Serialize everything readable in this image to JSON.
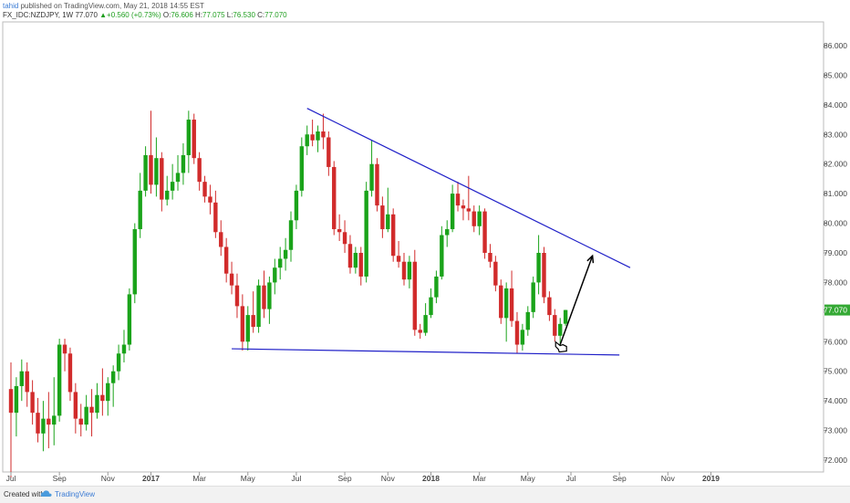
{
  "header": {
    "user": "tahid",
    "published": " published on TradingView.com, May 21, 2018 14:55 EST",
    "symbol": "FX_IDC:NZDJPY, 1W",
    "last": "77.070",
    "change": "▲+0.560 (+0.73%)",
    "o_label": "O:",
    "o": "76.606",
    "h_label": "H:",
    "h": "77.075",
    "l_label": "L:",
    "l": "76.530",
    "c_label": "C:",
    "c": "77.070"
  },
  "footer": {
    "created_with": "Created with",
    "brand": "TradingView",
    "logo": "tradingview-cloud-logo"
  },
  "colors": {
    "up": "#1aa31a",
    "down": "#d12b2b",
    "trendline": "#2020c8",
    "arrow": "#000000",
    "price_label_bg": "#34a934",
    "axis_text": "#444444",
    "grid": "#e8e8e8"
  },
  "chart_data": {
    "type": "candlestick",
    "symbol": "FX_IDC:NZDJPY",
    "interval": "1W",
    "ylim": [
      71.6,
      86.8
    ],
    "yticks": [
      "72.000",
      "73.000",
      "74.000",
      "75.000",
      "76.000",
      "77.000",
      "78.000",
      "79.000",
      "80.000",
      "81.000",
      "82.000",
      "83.000",
      "84.000",
      "85.000",
      "86.000"
    ],
    "xticks": [
      {
        "label": "Jul",
        "week": 0
      },
      {
        "label": "Sep",
        "week": 9
      },
      {
        "label": "Nov",
        "week": 18
      },
      {
        "label": "2017",
        "week": 26
      },
      {
        "label": "Mar",
        "week": 35
      },
      {
        "label": "May",
        "week": 44
      },
      {
        "label": "Jul",
        "week": 53
      },
      {
        "label": "Sep",
        "week": 62
      },
      {
        "label": "Nov",
        "week": 70
      },
      {
        "label": "2018",
        "week": 78
      },
      {
        "label": "Mar",
        "week": 87
      },
      {
        "label": "May",
        "week": 96
      },
      {
        "label": "Jul",
        "week": 104
      },
      {
        "label": "Sep",
        "week": 113
      },
      {
        "label": "Nov",
        "week": 122
      },
      {
        "label": "2019",
        "week": 130
      }
    ],
    "last_price_label": "77.070",
    "candles": [
      {
        "o": 74.4,
        "h": 75.3,
        "l": 71.4,
        "c": 73.6
      },
      {
        "o": 73.6,
        "h": 74.8,
        "l": 72.8,
        "c": 74.5
      },
      {
        "o": 74.5,
        "h": 75.4,
        "l": 74.0,
        "c": 75.0
      },
      {
        "o": 75.0,
        "h": 75.3,
        "l": 73.8,
        "c": 74.3
      },
      {
        "o": 74.3,
        "h": 74.7,
        "l": 73.2,
        "c": 73.6
      },
      {
        "o": 73.6,
        "h": 74.1,
        "l": 72.6,
        "c": 72.9
      },
      {
        "o": 72.9,
        "h": 74.0,
        "l": 72.3,
        "c": 73.4
      },
      {
        "o": 73.4,
        "h": 74.3,
        "l": 72.4,
        "c": 73.2
      },
      {
        "o": 73.2,
        "h": 74.8,
        "l": 72.5,
        "c": 73.5
      },
      {
        "o": 73.5,
        "h": 76.1,
        "l": 73.3,
        "c": 75.9
      },
      {
        "o": 75.9,
        "h": 76.1,
        "l": 75.0,
        "c": 75.6
      },
      {
        "o": 75.6,
        "h": 75.8,
        "l": 74.0,
        "c": 74.3
      },
      {
        "o": 74.3,
        "h": 74.6,
        "l": 72.9,
        "c": 73.4
      },
      {
        "o": 73.4,
        "h": 73.9,
        "l": 72.8,
        "c": 73.2
      },
      {
        "o": 73.2,
        "h": 74.2,
        "l": 73.0,
        "c": 73.8
      },
      {
        "o": 73.8,
        "h": 74.4,
        "l": 72.8,
        "c": 73.6
      },
      {
        "o": 73.6,
        "h": 74.6,
        "l": 73.4,
        "c": 74.2
      },
      {
        "o": 74.2,
        "h": 75.1,
        "l": 73.5,
        "c": 74.0
      },
      {
        "o": 74.0,
        "h": 74.8,
        "l": 73.5,
        "c": 74.6
      },
      {
        "o": 74.6,
        "h": 75.2,
        "l": 73.8,
        "c": 75.0
      },
      {
        "o": 75.0,
        "h": 75.9,
        "l": 74.7,
        "c": 75.6
      },
      {
        "o": 75.6,
        "h": 76.4,
        "l": 75.3,
        "c": 75.9
      },
      {
        "o": 75.9,
        "h": 77.8,
        "l": 75.7,
        "c": 77.6
      },
      {
        "o": 77.6,
        "h": 80.0,
        "l": 77.3,
        "c": 79.8
      },
      {
        "o": 79.8,
        "h": 81.7,
        "l": 79.5,
        "c": 81.1
      },
      {
        "o": 81.1,
        "h": 82.6,
        "l": 80.9,
        "c": 82.3
      },
      {
        "o": 82.3,
        "h": 83.8,
        "l": 81.0,
        "c": 81.3
      },
      {
        "o": 81.3,
        "h": 82.9,
        "l": 80.9,
        "c": 82.2
      },
      {
        "o": 82.2,
        "h": 82.4,
        "l": 80.4,
        "c": 80.8
      },
      {
        "o": 80.8,
        "h": 81.6,
        "l": 80.6,
        "c": 81.1
      },
      {
        "o": 81.1,
        "h": 82.0,
        "l": 80.8,
        "c": 81.4
      },
      {
        "o": 81.4,
        "h": 82.3,
        "l": 81.1,
        "c": 81.7
      },
      {
        "o": 81.7,
        "h": 82.7,
        "l": 81.3,
        "c": 82.3
      },
      {
        "o": 82.3,
        "h": 83.8,
        "l": 81.7,
        "c": 83.5
      },
      {
        "o": 83.5,
        "h": 83.7,
        "l": 82.0,
        "c": 82.2
      },
      {
        "o": 82.2,
        "h": 82.4,
        "l": 81.1,
        "c": 81.4
      },
      {
        "o": 81.4,
        "h": 81.6,
        "l": 80.7,
        "c": 80.9
      },
      {
        "o": 80.9,
        "h": 81.3,
        "l": 80.3,
        "c": 80.7
      },
      {
        "o": 80.7,
        "h": 81.1,
        "l": 79.5,
        "c": 79.7
      },
      {
        "o": 79.7,
        "h": 80.1,
        "l": 78.9,
        "c": 79.2
      },
      {
        "o": 79.2,
        "h": 79.5,
        "l": 78.0,
        "c": 78.3
      },
      {
        "o": 78.3,
        "h": 78.7,
        "l": 77.6,
        "c": 77.9
      },
      {
        "o": 77.9,
        "h": 78.3,
        "l": 76.8,
        "c": 77.2
      },
      {
        "o": 77.2,
        "h": 77.6,
        "l": 75.7,
        "c": 76.0
      },
      {
        "o": 76.0,
        "h": 77.2,
        "l": 75.7,
        "c": 76.9
      },
      {
        "o": 76.9,
        "h": 77.7,
        "l": 76.3,
        "c": 76.5
      },
      {
        "o": 76.5,
        "h": 78.1,
        "l": 76.3,
        "c": 77.9
      },
      {
        "o": 77.9,
        "h": 78.4,
        "l": 76.8,
        "c": 77.1
      },
      {
        "o": 77.1,
        "h": 78.2,
        "l": 76.6,
        "c": 78.0
      },
      {
        "o": 78.0,
        "h": 78.8,
        "l": 77.6,
        "c": 78.5
      },
      {
        "o": 78.5,
        "h": 79.2,
        "l": 78.1,
        "c": 78.8
      },
      {
        "o": 78.8,
        "h": 79.5,
        "l": 78.4,
        "c": 79.1
      },
      {
        "o": 79.1,
        "h": 80.4,
        "l": 78.7,
        "c": 80.1
      },
      {
        "o": 80.1,
        "h": 81.3,
        "l": 79.8,
        "c": 81.1
      },
      {
        "o": 81.1,
        "h": 82.9,
        "l": 80.9,
        "c": 82.6
      },
      {
        "o": 82.6,
        "h": 83.3,
        "l": 82.3,
        "c": 83.0
      },
      {
        "o": 83.0,
        "h": 83.5,
        "l": 82.6,
        "c": 82.8
      },
      {
        "o": 82.8,
        "h": 83.3,
        "l": 82.4,
        "c": 83.1
      },
      {
        "o": 83.1,
        "h": 83.7,
        "l": 82.5,
        "c": 82.9
      },
      {
        "o": 82.9,
        "h": 83.1,
        "l": 81.6,
        "c": 81.9
      },
      {
        "o": 81.9,
        "h": 82.1,
        "l": 79.6,
        "c": 79.8
      },
      {
        "o": 79.8,
        "h": 80.3,
        "l": 79.4,
        "c": 79.7
      },
      {
        "o": 79.7,
        "h": 80.1,
        "l": 79.0,
        "c": 79.3
      },
      {
        "o": 79.3,
        "h": 79.6,
        "l": 78.3,
        "c": 78.5
      },
      {
        "o": 78.5,
        "h": 79.2,
        "l": 78.3,
        "c": 79.0
      },
      {
        "o": 79.0,
        "h": 79.2,
        "l": 77.9,
        "c": 78.2
      },
      {
        "o": 78.2,
        "h": 81.4,
        "l": 78.0,
        "c": 81.1
      },
      {
        "o": 81.1,
        "h": 82.8,
        "l": 80.9,
        "c": 82.0
      },
      {
        "o": 82.0,
        "h": 82.2,
        "l": 80.4,
        "c": 80.6
      },
      {
        "o": 80.6,
        "h": 80.9,
        "l": 79.5,
        "c": 79.8
      },
      {
        "o": 79.8,
        "h": 81.2,
        "l": 79.7,
        "c": 80.3
      },
      {
        "o": 80.3,
        "h": 80.5,
        "l": 78.7,
        "c": 78.9
      },
      {
        "o": 78.9,
        "h": 79.4,
        "l": 78.5,
        "c": 78.7
      },
      {
        "o": 78.7,
        "h": 79.0,
        "l": 77.9,
        "c": 78.1
      },
      {
        "o": 78.1,
        "h": 78.9,
        "l": 77.8,
        "c": 78.7
      },
      {
        "o": 78.7,
        "h": 79.1,
        "l": 76.2,
        "c": 76.4
      },
      {
        "o": 76.4,
        "h": 76.6,
        "l": 76.1,
        "c": 76.3
      },
      {
        "o": 76.3,
        "h": 77.3,
        "l": 76.2,
        "c": 76.9
      },
      {
        "o": 76.9,
        "h": 77.8,
        "l": 76.8,
        "c": 77.5
      },
      {
        "o": 77.5,
        "h": 78.4,
        "l": 77.3,
        "c": 78.2
      },
      {
        "o": 78.2,
        "h": 79.9,
        "l": 78.1,
        "c": 79.6
      },
      {
        "o": 79.6,
        "h": 80.1,
        "l": 79.2,
        "c": 79.8
      },
      {
        "o": 79.8,
        "h": 81.3,
        "l": 79.7,
        "c": 81.0
      },
      {
        "o": 81.0,
        "h": 81.4,
        "l": 80.4,
        "c": 80.6
      },
      {
        "o": 80.6,
        "h": 80.8,
        "l": 80.1,
        "c": 80.5
      },
      {
        "o": 80.5,
        "h": 81.6,
        "l": 80.1,
        "c": 80.4
      },
      {
        "o": 80.4,
        "h": 80.6,
        "l": 79.7,
        "c": 79.9
      },
      {
        "o": 79.9,
        "h": 80.6,
        "l": 79.6,
        "c": 80.4
      },
      {
        "o": 80.4,
        "h": 80.5,
        "l": 78.8,
        "c": 79.0
      },
      {
        "o": 79.0,
        "h": 79.3,
        "l": 78.5,
        "c": 78.7
      },
      {
        "o": 78.7,
        "h": 78.9,
        "l": 77.7,
        "c": 77.9
      },
      {
        "o": 77.9,
        "h": 78.1,
        "l": 76.6,
        "c": 76.8
      },
      {
        "o": 76.8,
        "h": 78.0,
        "l": 76.0,
        "c": 77.8
      },
      {
        "o": 77.8,
        "h": 78.4,
        "l": 76.5,
        "c": 76.7
      },
      {
        "o": 76.7,
        "h": 77.0,
        "l": 75.6,
        "c": 75.9
      },
      {
        "o": 75.9,
        "h": 76.6,
        "l": 75.7,
        "c": 76.4
      },
      {
        "o": 76.4,
        "h": 77.2,
        "l": 76.2,
        "c": 77.0
      },
      {
        "o": 77.0,
        "h": 78.2,
        "l": 76.8,
        "c": 78.0
      },
      {
        "o": 78.0,
        "h": 79.6,
        "l": 77.6,
        "c": 79.0
      },
      {
        "o": 79.0,
        "h": 79.2,
        "l": 77.3,
        "c": 77.5
      },
      {
        "o": 77.5,
        "h": 77.7,
        "l": 76.7,
        "c": 76.9
      },
      {
        "o": 76.9,
        "h": 77.1,
        "l": 76.0,
        "c": 76.2
      },
      {
        "o": 76.2,
        "h": 76.8,
        "l": 75.8,
        "c": 76.6
      },
      {
        "o": 76.606,
        "h": 77.075,
        "l": 76.53,
        "c": 77.07
      }
    ],
    "annotations": [
      {
        "type": "trendline",
        "name": "descending-resistance",
        "from": {
          "week": 55,
          "price": 83.88
        },
        "to": {
          "week": 115,
          "price": 78.5
        }
      },
      {
        "type": "trendline",
        "name": "horizontal-support",
        "from": {
          "week": 41,
          "price": 75.76
        },
        "to": {
          "week": 113,
          "price": 75.55
        }
      },
      {
        "type": "arrow",
        "name": "projection-arrow",
        "from": {
          "week": 102,
          "price": 75.9
        },
        "to": {
          "week": 108,
          "price": 78.9
        }
      }
    ]
  }
}
